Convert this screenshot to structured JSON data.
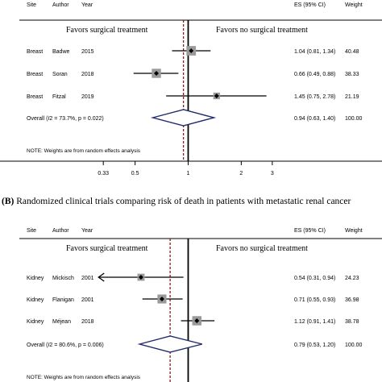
{
  "chart_data": [
    {
      "type": "forest",
      "columns": {
        "site": "Site",
        "author": "Author",
        "year": "Year",
        "es": "ES (95% CI)",
        "weight": "Weight"
      },
      "favors_left": "Favors surgical treatment",
      "favors_right": "Favors no surgical treatment",
      "studies": [
        {
          "site": "Breast",
          "author": "Badwe",
          "year": "2015",
          "es": 1.04,
          "lo": 0.81,
          "hi": 1.34,
          "ci_text": "1.04 (0.81, 1.34)",
          "weight": "40.48"
        },
        {
          "site": "Breast",
          "author": "Soran",
          "year": "2018",
          "es": 0.66,
          "lo": 0.49,
          "hi": 0.88,
          "ci_text": "0.66 (0.49, 0.88)",
          "weight": "38.33"
        },
        {
          "site": "Breast",
          "author": "Fitzal",
          "year": "2019",
          "es": 1.45,
          "lo": 0.75,
          "hi": 2.78,
          "ci_text": "1.45 (0.75, 2.78)",
          "weight": "21.19"
        }
      ],
      "overall": {
        "label_prefix": "Overall (",
        "label_i2": "I",
        "label_suffix": "2 = 73.7%, p = 0.022)",
        "es": 0.94,
        "lo": 0.63,
        "hi": 1.4,
        "ci_text": "0.94 (0.63, 1.40)",
        "weight": "100.00"
      },
      "note": "NOTE: Weights are from random effects analysis",
      "x_scale": "log",
      "xlim": [
        0.2,
        5
      ],
      "x_ticks": [
        0.33,
        0.5,
        1,
        2,
        3
      ],
      "x_tick_labels": [
        "0.33",
        "0.5",
        "1",
        "2",
        "3"
      ],
      "null_line": 1
    },
    {
      "type": "forest",
      "title": "(B) Randomized clinical trials comparing risk of death in patients with metastatic renal cancer",
      "title_letter": "(B)",
      "title_text": "Randomized clinical trials comparing risk of death in patients with metastatic renal cancer",
      "columns": {
        "site": "Site",
        "author": "Author",
        "year": "Year",
        "es": "ES (95% CI)",
        "weight": "Weight"
      },
      "favors_left": "Favors surgical treatment",
      "favors_right": "Favors no surgical treatment",
      "studies": [
        {
          "site": "Kidney",
          "author": "Mickisch",
          "year": "2001",
          "es": 0.54,
          "lo": 0.31,
          "hi": 0.94,
          "ci_text": "0.54 (0.31, 0.94)",
          "weight": "24.23",
          "arrow_left": true
        },
        {
          "site": "Kidney",
          "author": "Flanigan",
          "year": "2001",
          "es": 0.71,
          "lo": 0.55,
          "hi": 0.93,
          "ci_text": "0.71 (0.55, 0.93)",
          "weight": "36.98"
        },
        {
          "site": "Kidney",
          "author": "Méjean",
          "year": "2018",
          "es": 1.12,
          "lo": 0.91,
          "hi": 1.41,
          "ci_text": "1.12 (0.91, 1.41)",
          "weight": "38.78"
        }
      ],
      "overall": {
        "label_prefix": "Overall (",
        "label_i2": "I",
        "label_suffix": "2 = 80.6%, p = 0.006)",
        "es": 0.79,
        "lo": 0.53,
        "hi": 1.2,
        "ci_text": "0.79 (0.53, 1.20)",
        "weight": "100.00"
      },
      "note": "NOTE: Weights are from random effects analysis",
      "x_scale": "log",
      "null_line": 1
    }
  ],
  "colors": {
    "estimate_line": "#8b1a1a",
    "diamond": "#1f2a6b",
    "box": "#9a9a9a",
    "ink": "#000000"
  }
}
